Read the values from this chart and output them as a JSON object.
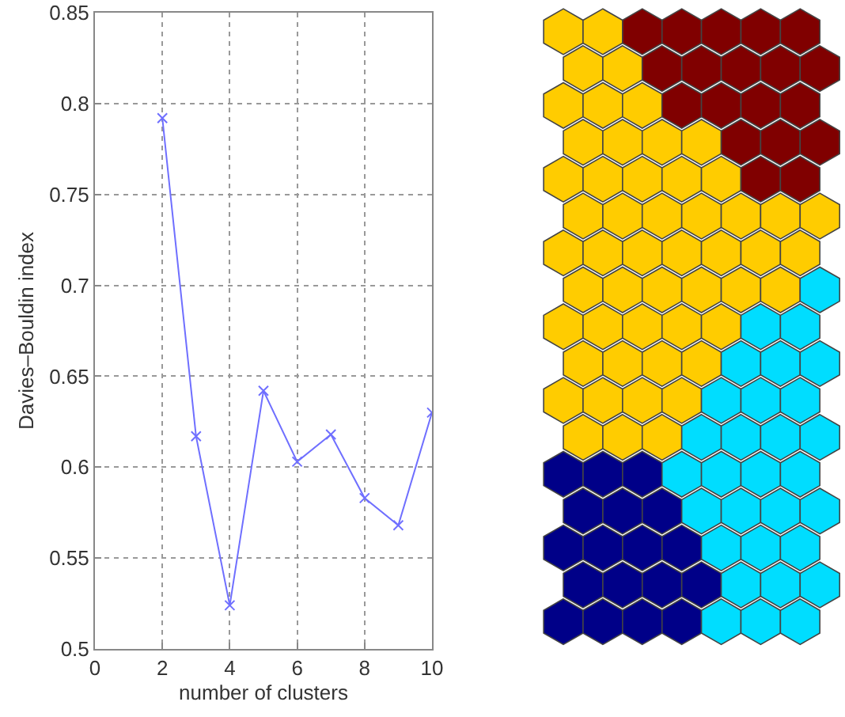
{
  "chart_data": {
    "type": "line",
    "xlabel": "number of clusters",
    "ylabel": "Davies–Bouldin index",
    "x": [
      2,
      3,
      4,
      5,
      6,
      7,
      8,
      9,
      10
    ],
    "series": [
      {
        "color": "#6f6fff",
        "values": [
          0.792,
          0.617,
          0.524,
          0.642,
          0.603,
          0.618,
          0.583,
          0.568,
          0.63
        ]
      }
    ],
    "xlim": [
      0,
      10
    ],
    "xticks": [
      0,
      2,
      4,
      6,
      8,
      10
    ],
    "ylim": [
      0.5,
      0.85
    ],
    "yticks": [
      0.5,
      0.55,
      0.6,
      0.65,
      0.7,
      0.75,
      0.8,
      0.85
    ],
    "grid": true,
    "marker": "cross",
    "line_style": "solid"
  }
}
